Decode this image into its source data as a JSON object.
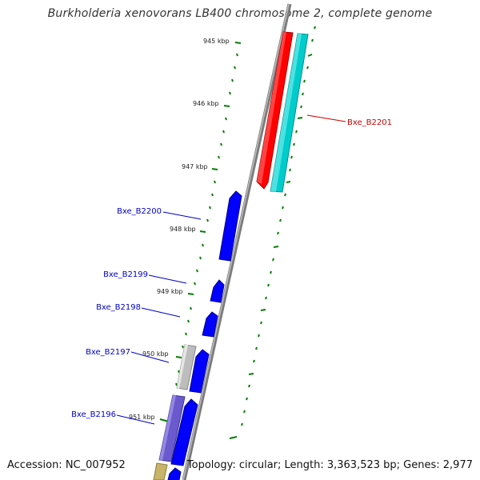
{
  "title": "Burkholderia xenovorans LB400 chromosome 2, complete genome",
  "footer": {
    "accession": "Accession: NC_007952",
    "summary": "Topology: circular; Length: 3,363,523 bp; Genes: 2,977"
  },
  "ticks": [
    "945 kbp",
    "946 kbp",
    "947 kbp",
    "948 kbp",
    "949 kbp",
    "950 kbp",
    "951 kbp"
  ],
  "gene_labels": [
    "Bxe_B2201",
    "Bxe_B2200",
    "Bxe_B2199",
    "Bxe_B2198",
    "Bxe_B2197",
    "Bxe_B2196"
  ],
  "colors": {
    "forward_cds": "#ff0000",
    "reverse_cds": "#0000ff",
    "forward_cog": "#00c8c8",
    "reverse_cog_gray": "#bbbbbb",
    "reverse_cog_purple": "#6a5acd",
    "reverse_cog_olive": "#c8b86a",
    "backbone": "#777777",
    "ticks": "#008000",
    "forward_label": "#cc0000",
    "reverse_label": "#0000cc"
  }
}
